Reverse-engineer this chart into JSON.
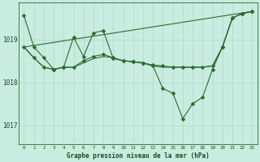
{
  "background_color": "#c8ece0",
  "grid_color": "#b0d8c8",
  "line_color": "#2d6a2d",
  "text_color": "#1a4a1a",
  "xlabel": "Graphe pression niveau de la mer (hPa)",
  "xlim": [
    -0.5,
    23.5
  ],
  "ylim": [
    1016.55,
    1019.85
  ],
  "yticks": [
    1017,
    1018,
    1019
  ],
  "xticks": [
    0,
    1,
    2,
    3,
    4,
    5,
    6,
    7,
    8,
    9,
    10,
    11,
    12,
    13,
    14,
    15,
    16,
    17,
    18,
    19,
    20,
    21,
    22,
    23
  ],
  "series": {
    "s1": {
      "x": [
        0,
        1,
        2,
        3,
        4,
        5,
        6,
        7,
        8,
        9,
        10,
        11,
        12,
        13,
        14,
        15,
        16,
        17,
        18,
        19,
        20,
        21,
        22,
        23
      ],
      "y": [
        1019.55,
        1018.82,
        1018.57,
        1018.3,
        1018.35,
        1019.05,
        1018.6,
        1019.15,
        1019.2,
        1018.55,
        1018.5,
        1018.48,
        1018.45,
        1018.4,
        1018.38,
        1018.35,
        1018.35,
        1018.35,
        1018.35,
        1018.38,
        1018.82,
        1019.5,
        1019.6,
        1019.65
      ],
      "marker": "D",
      "markersize": 2.5,
      "has_marker": true,
      "lw": 0.8
    },
    "s2": {
      "x": [
        0,
        1,
        2,
        3,
        4,
        5,
        6,
        7,
        8,
        9,
        10,
        11,
        12,
        13,
        14,
        15,
        16,
        17,
        18,
        19,
        20,
        21,
        22,
        23
      ],
      "y": [
        1018.82,
        1018.57,
        1018.35,
        1018.3,
        1018.35,
        1018.35,
        1018.5,
        1018.6,
        1018.65,
        1018.57,
        1018.5,
        1018.48,
        1018.45,
        1018.38,
        1017.85,
        1017.75,
        1017.15,
        1017.5,
        1017.65,
        1018.3,
        1018.82,
        1019.5,
        1019.6,
        1019.65
      ],
      "marker": "D",
      "markersize": 2.5,
      "has_marker": true,
      "lw": 0.8
    },
    "s3": {
      "x": [
        0,
        23
      ],
      "y": [
        1018.82,
        1019.65
      ],
      "marker": null,
      "markersize": 0,
      "has_marker": false,
      "lw": 0.8
    },
    "s4": {
      "x": [
        0,
        1,
        2,
        3,
        4,
        5,
        6,
        7,
        8,
        9,
        10,
        11,
        12,
        13,
        14,
        15,
        16,
        17,
        18,
        19,
        20,
        21,
        22,
        23
      ],
      "y": [
        1018.82,
        1018.57,
        1018.35,
        1018.3,
        1018.35,
        1018.35,
        1018.45,
        1018.55,
        1018.6,
        1018.57,
        1018.5,
        1018.48,
        1018.45,
        1018.38,
        1018.35,
        1018.35,
        1018.35,
        1018.35,
        1018.35,
        1018.38,
        1018.82,
        1019.5,
        1019.6,
        1019.65
      ],
      "marker": null,
      "markersize": 0,
      "has_marker": false,
      "lw": 0.8
    }
  }
}
